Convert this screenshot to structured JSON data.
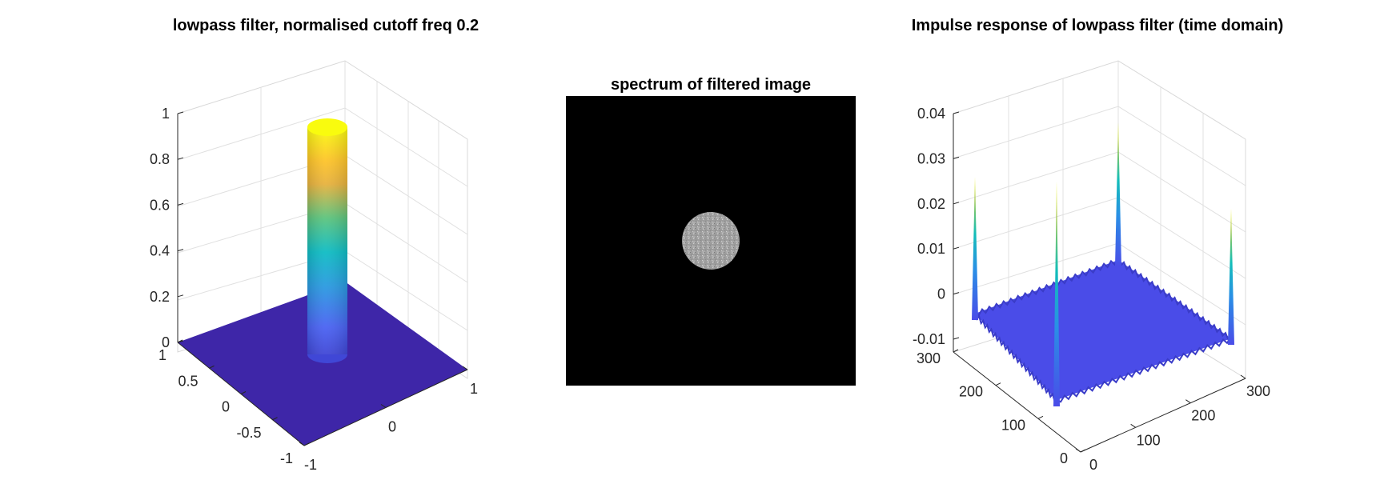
{
  "chart_data": [
    {
      "type": "surface",
      "title": "lowpass filter, normalised cutoff freq 0.2",
      "x_ticks": [
        "-1",
        "0",
        "1"
      ],
      "y_ticks": [
        "-1",
        "-0.5",
        "0",
        "0.5",
        "1"
      ],
      "z_ticks": [
        "0",
        "0.2",
        "0.4",
        "0.6",
        "0.8",
        "1"
      ],
      "xlim": [
        -1,
        1
      ],
      "ylim": [
        -1,
        1
      ],
      "zlim": [
        0,
        1
      ],
      "cutoff_radius": 0.2,
      "passband_value": 1,
      "stopband_value": 0,
      "grid": true,
      "colormap": "parula",
      "colors": {
        "low": "#3E26A8",
        "mid": "#12BEB9",
        "high": "#F9FB0E"
      }
    },
    {
      "type": "heatmap",
      "title": "spectrum of filtered image",
      "background_color": "#000000",
      "disc_color": "#a8a8a8",
      "disc_center": [
        0.5,
        0.5
      ],
      "disc_radius_fraction": 0.1
    },
    {
      "type": "surface",
      "title": "Impulse response of lowpass filter (time domain)",
      "x_ticks": [
        "0",
        "100",
        "200",
        "300"
      ],
      "y_ticks": [
        "0",
        "100",
        "200",
        "300"
      ],
      "z_ticks": [
        "-0.01",
        "0",
        "0.01",
        "0.02",
        "0.03",
        "0.04"
      ],
      "xlim": [
        0,
        300
      ],
      "ylim": [
        0,
        300
      ],
      "zlim": [
        -0.01,
        0.04
      ],
      "peaks": [
        {
          "x": 0,
          "y": 0,
          "z": 0.025
        },
        {
          "x": 300,
          "y": 300,
          "z": 0.038
        },
        {
          "x": 300,
          "y": 0,
          "z": 0.019
        },
        {
          "x": 0,
          "y": 300,
          "z": 0.026
        }
      ],
      "baseline_value": 0,
      "grid": true,
      "colormap": "parula",
      "colors": {
        "low": "#4A4CE8",
        "mid": "#12BEB9",
        "high": "#F9FB0E"
      }
    }
  ]
}
